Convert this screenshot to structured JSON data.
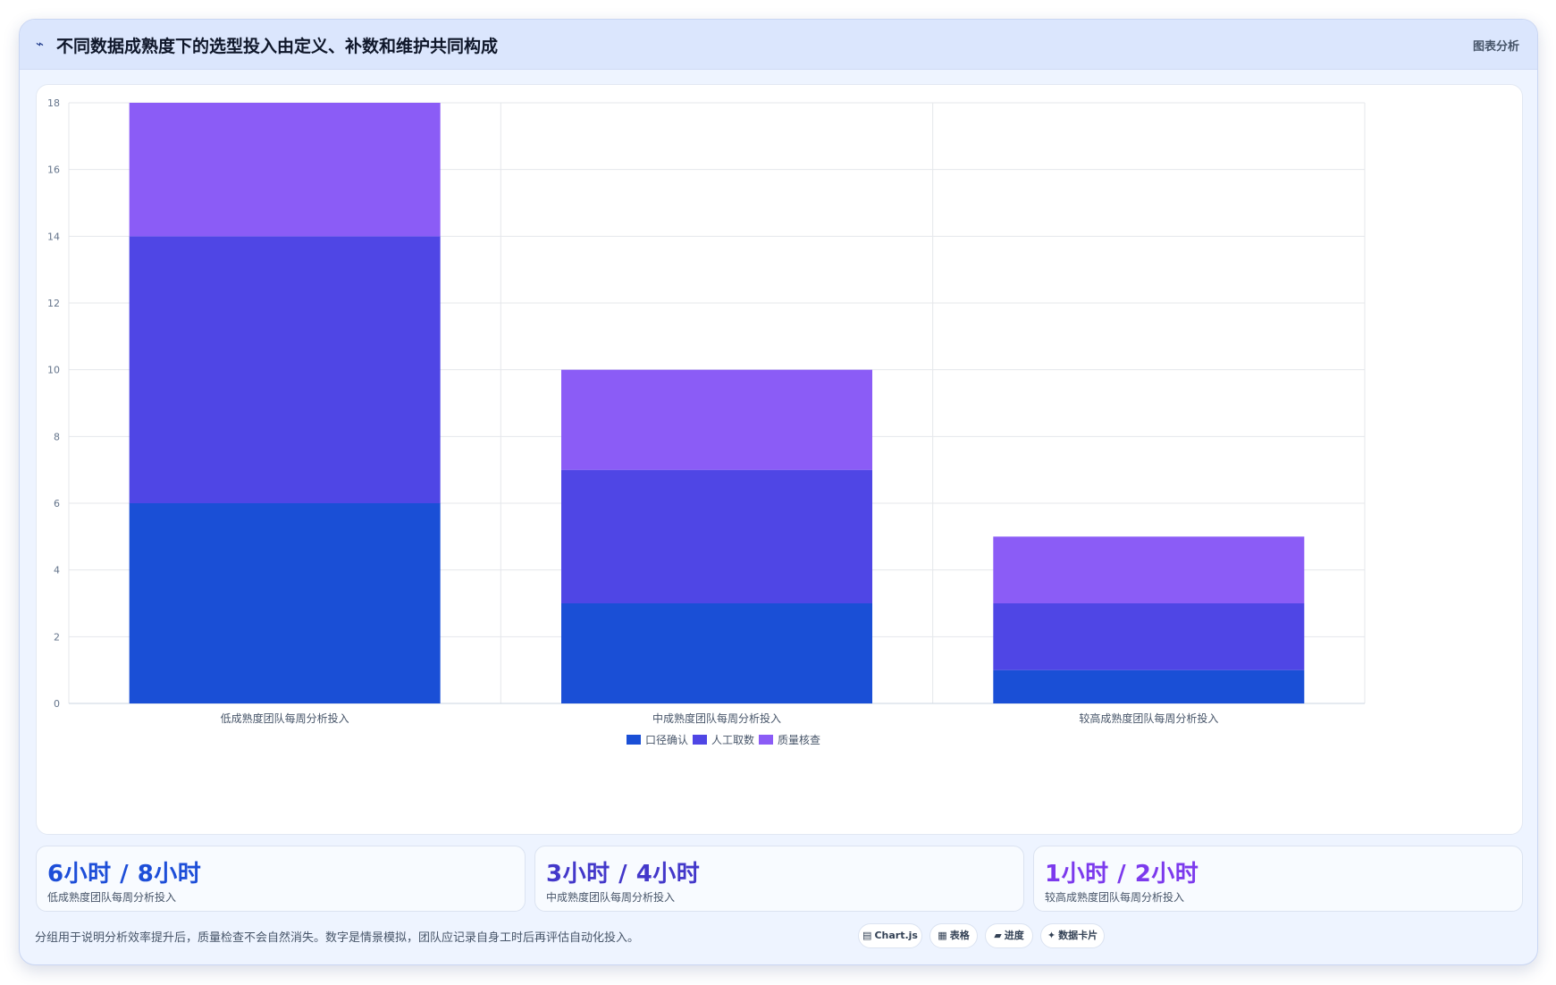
{
  "header": {
    "icon": "chart-line-icon",
    "title": "不同数据成熟度下的选型投入由定义、补数和维护共同构成",
    "tag": "图表分析"
  },
  "chart_data": {
    "type": "bar",
    "stacked": true,
    "categories": [
      "低成熟度团队每周分析投入",
      "中成熟度团队每周分析投入",
      "较高成熟度团队每周分析投入"
    ],
    "series": [
      {
        "name": "口径确认",
        "color": "#1a4fd6",
        "values": [
          6,
          3,
          1
        ]
      },
      {
        "name": "人工取数",
        "color": "#4f46e5",
        "values": [
          8,
          4,
          2
        ]
      },
      {
        "name": "质量核查",
        "color": "#8b5cf6",
        "values": [
          4,
          3,
          2
        ]
      }
    ],
    "ylim": [
      0,
      18
    ],
    "yticks": [
      0,
      2,
      4,
      6,
      8,
      10,
      12,
      14,
      16,
      18
    ],
    "grid": true,
    "legend": "bottom-center"
  },
  "stats": [
    {
      "value": "6小时 / 8小时",
      "label": "低成熟度团队每周分析投入",
      "color": "#1d4ed8"
    },
    {
      "value": "3小时 / 4小时",
      "label": "中成熟度团队每周分析投入",
      "color": "#4338ca"
    },
    {
      "value": "1小时 / 2小时",
      "label": "较高成熟度团队每周分析投入",
      "color": "#7c3aed"
    }
  ],
  "footnote": "分组用于说明分析效率提升后，质量检查不会自然消失。数字是情景模拟，团队应记录自身工时后再评估自动化投入。",
  "chips": [
    {
      "icon": "▤",
      "label": "Chart.js"
    },
    {
      "icon": "▦",
      "label": "表格"
    },
    {
      "icon": "▰",
      "label": "进度"
    },
    {
      "icon": "✦",
      "label": "数据卡片"
    }
  ]
}
